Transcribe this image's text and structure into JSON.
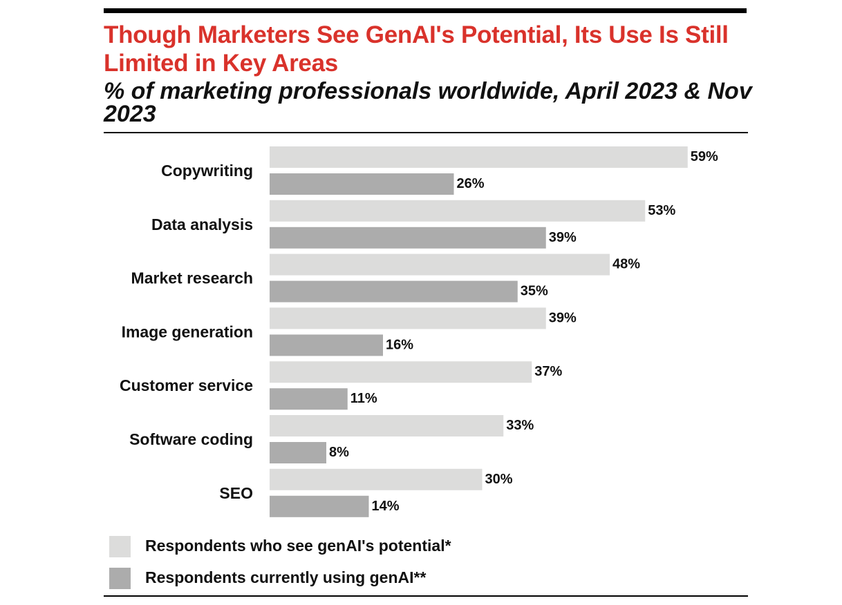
{
  "header": {
    "title": "Though Marketers See GenAI's Potential, Its Use Is Still Limited in Key Areas",
    "subtitle": "% of marketing professionals worldwide, April 2023 & Nov 2023"
  },
  "chart_data": {
    "type": "bar",
    "orientation": "horizontal",
    "title": "Though Marketers See GenAI's Potential, Its Use Is Still Limited in Key Areas",
    "subtitle": "% of marketing professionals worldwide, April 2023 & Nov 2023",
    "categories": [
      "Copywriting",
      "Data analysis",
      "Market research",
      "Image generation",
      "Customer service",
      "Software coding",
      "SEO"
    ],
    "series": [
      {
        "name": "Respondents who see genAI's potential*",
        "color": "#dcdcdb",
        "values": [
          59,
          53,
          48,
          39,
          37,
          33,
          30
        ],
        "labels": [
          "59%",
          "53%",
          "48%",
          "39%",
          "37%",
          "33%",
          "30%"
        ]
      },
      {
        "name": "Respondents currently using genAI**",
        "color": "#acacac",
        "values": [
          26,
          39,
          35,
          16,
          11,
          8,
          14
        ],
        "labels": [
          "26%",
          "39%",
          "35%",
          "16%",
          "11%",
          "8%",
          "14%"
        ]
      }
    ],
    "xlim": [
      0,
      60
    ],
    "grid": false,
    "legend_position": "bottom-left"
  },
  "legend": {
    "items": [
      {
        "label": "Respondents who see genAI's potential*",
        "color": "#dcdcdb"
      },
      {
        "label": "Respondents currently using genAI**",
        "color": "#acacac"
      }
    ]
  }
}
